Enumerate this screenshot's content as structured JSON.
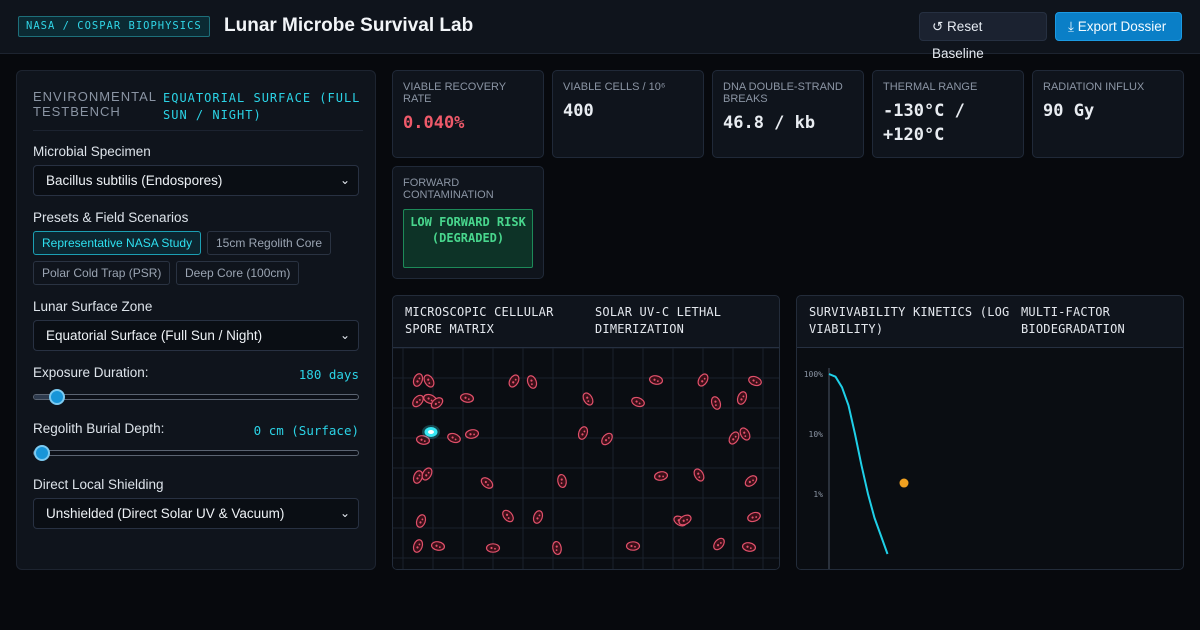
{
  "header": {
    "agency": "NASA / COSPAR BIOPHYSICS",
    "title": "Lunar Microbe Survival Lab",
    "reset_label": "↺ Reset Baseline",
    "export_label": "⤓ Export Dossier"
  },
  "sidebar": {
    "section_label": "ENVIRONMENTAL TESTBENCH",
    "zone_tag": "EQUATORIAL SURFACE (FULL SUN / NIGHT)",
    "specimen_label": "Microbial Specimen",
    "specimen_value": "Bacillus subtilis (Endospores)",
    "presets_label": "Presets & Field Scenarios",
    "presets": [
      {
        "label": "Representative NASA Study",
        "active": true
      },
      {
        "label": "15cm Regolith Core",
        "active": false
      },
      {
        "label": "Polar Cold Trap (PSR)",
        "active": false
      },
      {
        "label": "Deep Core (100cm)",
        "active": false
      }
    ],
    "zone_label": "Lunar Surface Zone",
    "zone_value": "Equatorial Surface (Full Sun / Night)",
    "exposure_label": "Exposure Duration:",
    "exposure_value": "180 days",
    "exposure_level": 0.07,
    "burial_label": "Regolith Burial Depth:",
    "burial_value": "0 cm (Surface)",
    "burial_level": 0.0,
    "shielding_label": "Direct Local Shielding",
    "shielding_value": "Unshielded (Direct Solar UV & Vacuum)"
  },
  "metrics": [
    {
      "label": "Viable Recovery Rate",
      "value": "0.040%",
      "alert": true
    },
    {
      "label": "Viable Cells / 10⁶",
      "value": "400",
      "alert": false
    },
    {
      "label": "DNA Double-Strand Breaks",
      "value": "46.8 / kb",
      "alert": false
    },
    {
      "label": "Thermal Range",
      "value": "-130°C / +120°C",
      "alert": false
    },
    {
      "label": "Radiation Influx",
      "value": "90 Gy",
      "alert": false
    }
  ],
  "risk": {
    "label": "Forward Contamination",
    "value": "LOW FORWARD RISK (DEGRADED)"
  },
  "spore_panel": {
    "title_left": "MICROSCOPIC CELLULAR SPORE MATRIX",
    "title_right": "SOLAR UV-C LETHAL DIMERIZATION"
  },
  "kinetics_panel": {
    "title_left": "SURVIVABILITY KINETICS (LOG VIABILITY)",
    "title_right": "MULTI-FACTOR BIODEGRADATION"
  },
  "colors": {
    "accent": "#2bd3e6",
    "alert": "#ef5a6a",
    "spore": "#e0506a",
    "viable_spore": "#38e8f5",
    "curve": "#1fd0e8",
    "marker": "#f0a020",
    "ok": "#48d68d"
  },
  "chart_data": {
    "type": "line",
    "title": "SURVIVABILITY KINETICS (LOG VIABILITY)",
    "xlabel": "",
    "ylabel": "",
    "y_scale": "log",
    "y_ticks": [
      "100%",
      "10%",
      "1%"
    ],
    "grid": false,
    "series": [
      {
        "values_percent": [
          100,
          90,
          60,
          30,
          10,
          3,
          1,
          0.4,
          0.2,
          0.1
        ]
      }
    ],
    "marker": {
      "label": "",
      "value_percent": 0.5
    }
  }
}
